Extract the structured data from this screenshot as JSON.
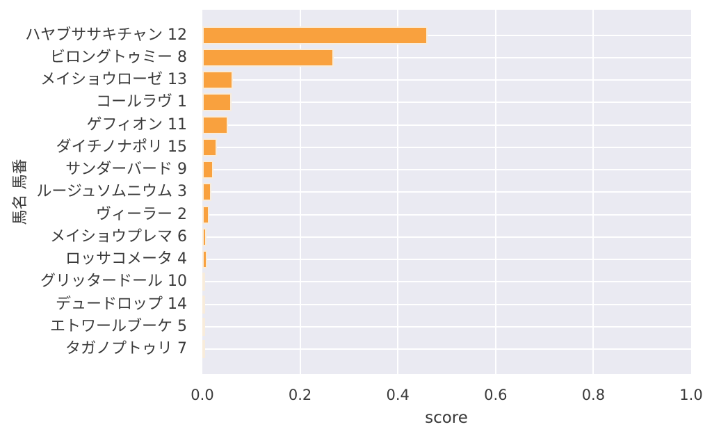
{
  "chart_data": {
    "type": "bar",
    "orientation": "horizontal",
    "title": "",
    "xlabel": "score",
    "ylabel": "馬名 馬番",
    "xlim": [
      0.0,
      1.0
    ],
    "xtick_labels": [
      "0.0",
      "0.2",
      "0.4",
      "0.6",
      "0.8",
      "1.0"
    ],
    "xtick_values": [
      0.0,
      0.2,
      0.4,
      0.6,
      0.8,
      1.0
    ],
    "grid": true,
    "grid_color": "#ffffff",
    "plot_background": "#eaeaf2",
    "bar_color": "#f9a13e",
    "bar_edge_color": "#f8ecdb",
    "text_color": "#3a3a3a",
    "legend": false,
    "categories": [
      "ハヤブササキチャン 12",
      "ビロングトゥミー 8",
      "メイショウローゼ 13",
      "コールラヴ 1",
      "ゲフィオン 11",
      "ダイチノナポリ 15",
      "サンダーバード 9",
      "ルージュソムニウム 3",
      "ヴィーラー 2",
      "メイショウプレマ 6",
      "ロッサコメータ 4",
      "グリッタードール 10",
      "デュードロップ 14",
      "エトワールブーケ 5",
      "タガノプトゥリ 7"
    ],
    "values": [
      0.456,
      0.265,
      0.059,
      0.055,
      0.048,
      0.025,
      0.019,
      0.014,
      0.01,
      0.004,
      0.005,
      0.0015,
      0.0012,
      0.0006,
      0.0002
    ]
  }
}
